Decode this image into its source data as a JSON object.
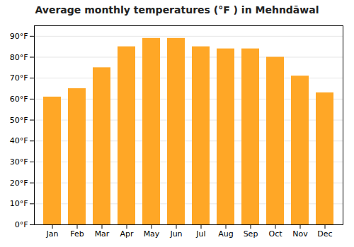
{
  "chart_data": {
    "type": "bar",
    "title": "Average monthly temperatures (°F ) in Mehndāwal",
    "categories": [
      "Jan",
      "Feb",
      "Mar",
      "Apr",
      "May",
      "Jun",
      "Jul",
      "Aug",
      "Sep",
      "Oct",
      "Nov",
      "Dec"
    ],
    "values": [
      61,
      65,
      75,
      85,
      89,
      89,
      85,
      84,
      84,
      80,
      71,
      63
    ],
    "color": "#FFA726",
    "ylim": [
      0,
      95
    ],
    "yticks": [
      {
        "value": 0,
        "label": "0°F"
      },
      {
        "value": 10,
        "label": "10°F"
      },
      {
        "value": 20,
        "label": "20°F"
      },
      {
        "value": 30,
        "label": "30°F"
      },
      {
        "value": 40,
        "label": "40°F"
      },
      {
        "value": 50,
        "label": "50°F"
      },
      {
        "value": 60,
        "label": "60°F"
      },
      {
        "value": 70,
        "label": "70°F"
      },
      {
        "value": 80,
        "label": "80°F"
      },
      {
        "value": 90,
        "label": "90°F"
      }
    ],
    "grid": true
  }
}
